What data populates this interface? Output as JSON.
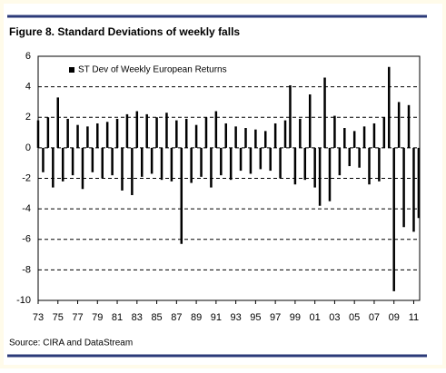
{
  "chart_data": {
    "type": "bar",
    "title": "Figure 8. Standard Deviations of weekly falls",
    "source": "Source: CIRA and DataStream",
    "series": [
      {
        "name": "ST Dev of Weekly European Returns",
        "color": "#000000",
        "values": [
          1.8,
          -1.6,
          2.0,
          -2.6,
          3.3,
          -2.2,
          1.9,
          -1.8,
          1.5,
          -2.7,
          1.4,
          -1.6,
          1.6,
          -2.0,
          1.7,
          -1.8,
          1.9,
          -2.8,
          2.2,
          -3.1,
          2.4,
          -1.9,
          2.2,
          -1.7,
          2.0,
          -2.1,
          2.3,
          -2.2,
          1.8,
          -6.3,
          1.9,
          -2.3,
          1.5,
          -1.9,
          2.0,
          -2.6,
          2.4,
          -1.8,
          1.6,
          -2.1,
          1.4,
          -1.5,
          1.3,
          -1.7,
          1.2,
          -1.4,
          1.1,
          -1.5,
          1.6,
          -2.0,
          1.8,
          4.1,
          -2.4,
          1.9,
          -2.1,
          3.5,
          -2.6,
          -3.8,
          4.6,
          -3.5,
          2.1,
          -1.8,
          1.3,
          -1.2,
          1.1,
          -1.3,
          1.4,
          -2.4,
          1.6,
          -2.2,
          2.0,
          5.3,
          -9.4,
          3.0,
          -5.2,
          2.8,
          -5.5,
          -4.6
        ]
      }
    ],
    "x": [
      1973,
      1973.5,
      1974,
      1974.5,
      1975,
      1975.5,
      1976,
      1976.5,
      1977,
      1977.5,
      1978,
      1978.5,
      1979,
      1979.5,
      1980,
      1980.5,
      1981,
      1981.5,
      1982,
      1982.5,
      1983,
      1983.5,
      1984,
      1984.5,
      1985,
      1985.5,
      1986,
      1986.5,
      1987,
      1987.5,
      1988,
      1988.5,
      1989,
      1989.5,
      1990,
      1990.5,
      1991,
      1991.5,
      1992,
      1992.5,
      1993,
      1993.5,
      1994,
      1994.5,
      1995,
      1995.5,
      1996,
      1996.5,
      1997,
      1997.5,
      1998,
      1998.5,
      1999,
      1999.5,
      2000,
      2000.5,
      2001,
      2001.5,
      2002,
      2002.5,
      2003,
      2003.5,
      2004,
      2004.5,
      2005,
      2005.5,
      2006,
      2006.5,
      2007,
      2007.5,
      2008,
      2008.5,
      2009,
      2009.5,
      2010,
      2010.5,
      2011,
      2011.5
    ],
    "xlim": [
      1973,
      2011.6
    ],
    "xticks": [
      {
        "value": 1973,
        "label": "73"
      },
      {
        "value": 1975,
        "label": "75"
      },
      {
        "value": 1977,
        "label": "77"
      },
      {
        "value": 1979,
        "label": "79"
      },
      {
        "value": 1981,
        "label": "81"
      },
      {
        "value": 1983,
        "label": "83"
      },
      {
        "value": 1985,
        "label": "85"
      },
      {
        "value": 1987,
        "label": "87"
      },
      {
        "value": 1989,
        "label": "89"
      },
      {
        "value": 1991,
        "label": "91"
      },
      {
        "value": 1993,
        "label": "93"
      },
      {
        "value": 1995,
        "label": "95"
      },
      {
        "value": 1997,
        "label": "97"
      },
      {
        "value": 1999,
        "label": "99"
      },
      {
        "value": 2001,
        "label": "01"
      },
      {
        "value": 2003,
        "label": "03"
      },
      {
        "value": 2005,
        "label": "05"
      },
      {
        "value": 2007,
        "label": "07"
      },
      {
        "value": 2009,
        "label": "09"
      },
      {
        "value": 2011,
        "label": "11"
      }
    ],
    "ylim": [
      -10,
      6
    ],
    "yticks": [
      -10,
      -8,
      -6,
      -4,
      -2,
      0,
      2,
      4,
      6
    ],
    "grid": true,
    "legend": "top-left"
  }
}
